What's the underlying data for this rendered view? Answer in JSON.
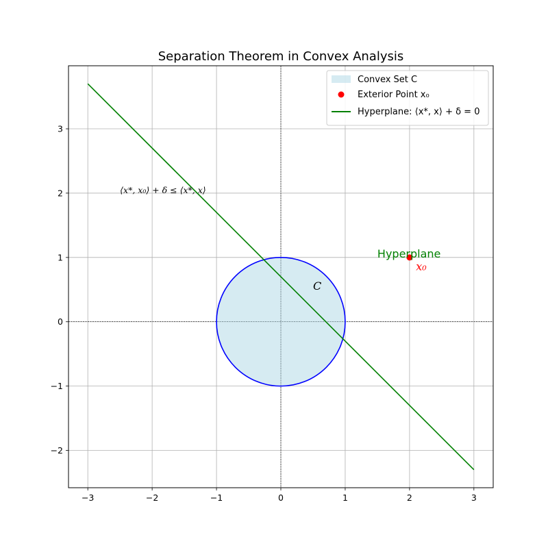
{
  "chart_data": {
    "type": "line",
    "title": "Separation Theorem in Convex Analysis",
    "xlabel": "",
    "ylabel": "",
    "xlim": [
      -3.3,
      3.3
    ],
    "ylim": [
      -2.58,
      3.98
    ],
    "xticks": [
      -3,
      -2,
      -1,
      0,
      1,
      2,
      3
    ],
    "xtick_labels": [
      "−3",
      "−2",
      "−1",
      "0",
      "1",
      "2",
      "3"
    ],
    "yticks": [
      -2,
      -1,
      0,
      1,
      2,
      3
    ],
    "ytick_labels": [
      "−2",
      "−1",
      "0",
      "1",
      "2",
      "3"
    ],
    "grid": true,
    "axis_lines": {
      "x0": true,
      "y0": true,
      "style": "dashed",
      "color": "#000000"
    },
    "legend_placement": "top-right",
    "series": [
      {
        "name": "Convex Set C",
        "kind": "filled-circle",
        "center": [
          0,
          0
        ],
        "radius": 1,
        "fill_color": "#add8e6",
        "edge_color": "#0000ff"
      },
      {
        "name": "Exterior Point x₀",
        "kind": "point",
        "x": [
          2
        ],
        "y": [
          1
        ],
        "color": "#ff0000"
      },
      {
        "name": "Hyperplane: ⟨x*, x⟩ + δ = 0",
        "kind": "line",
        "x": [
          -3,
          3
        ],
        "y": [
          3.7,
          -2.3
        ],
        "color": "#008000"
      }
    ],
    "annotations": [
      {
        "id": "set",
        "text": "C",
        "x": 0.5,
        "y": 0.5,
        "color": "#000000"
      },
      {
        "id": "point",
        "text": "x₀",
        "x": 2.1,
        "y": 0.8,
        "color": "#ff0000"
      },
      {
        "id": "hyperplane",
        "text": "Hyperplane",
        "x": 1.5,
        "y": 1.0,
        "color": "#008000"
      },
      {
        "id": "inequality",
        "text": "⟨x*, x₀⟩ + δ ≤ ⟨x*, x⟩",
        "x": -2.5,
        "y": 2.0,
        "color": "#000000"
      }
    ]
  }
}
